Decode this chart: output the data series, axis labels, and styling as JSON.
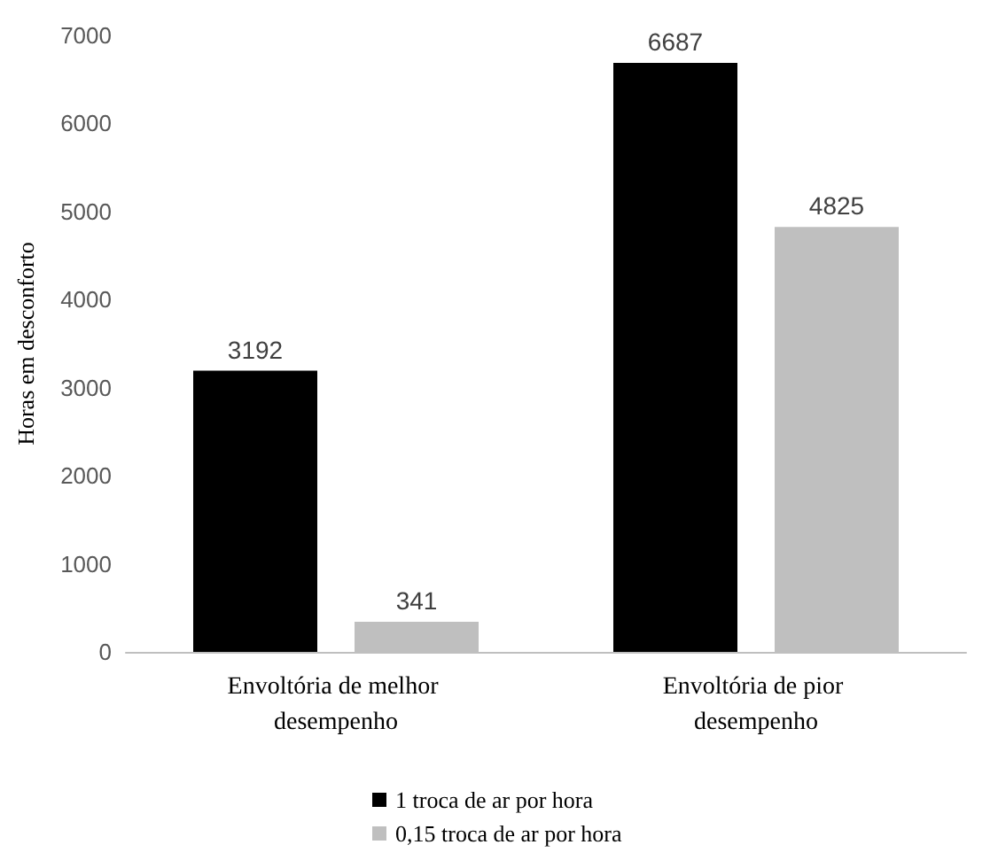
{
  "chart_data": {
    "type": "bar",
    "ylabel": "Horas em desconforto",
    "categories": [
      "Envoltória de melhor desempenho",
      "Envoltória de pior desempenho"
    ],
    "series": [
      {
        "name": "1 troca de ar por hora",
        "color": "#000000",
        "values": [
          3192,
          6687
        ]
      },
      {
        "name": "0,15 troca de ar por hora",
        "color": "#bfbfbf",
        "values": [
          341,
          4825
        ]
      }
    ],
    "ylim": [
      0,
      7000
    ],
    "yticks": [
      0,
      1000,
      2000,
      3000,
      4000,
      5000,
      6000,
      7000
    ],
    "grid": false,
    "legend": "bottom",
    "data_labels": true
  }
}
